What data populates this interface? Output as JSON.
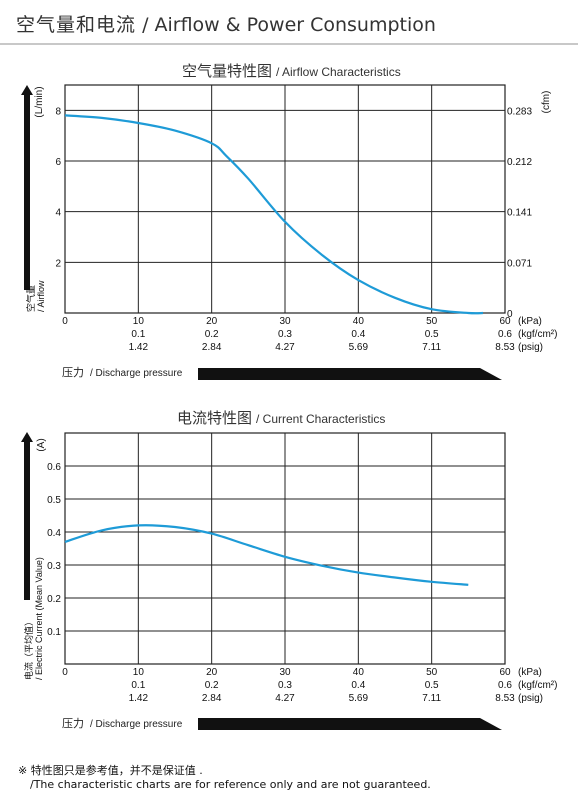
{
  "page": {
    "title_cn": "空气量和电流",
    "title_en": "/ Airflow & Power Consumption"
  },
  "colors": {
    "curve": "#1e9bd7",
    "grid": "#222222",
    "arrow": "#111111"
  },
  "pressure_axis": {
    "kpa_ticks": [
      "0",
      "10",
      "20",
      "30",
      "40",
      "50",
      "60"
    ],
    "kgf_ticks": [
      "0.1",
      "0.2",
      "0.3",
      "0.4",
      "0.5",
      "0.6"
    ],
    "psig_ticks": [
      "1.42",
      "2.84",
      "4.27",
      "5.69",
      "7.11",
      "8.53"
    ],
    "unit_kpa": "(kPa)",
    "unit_kgf": "(kgf/cm²)",
    "unit_psig": "(psig)",
    "label_cn": "压力",
    "label_en": "/ Discharge pressure"
  },
  "chart_data": [
    {
      "type": "line",
      "title_cn": "空气量特性图",
      "title_en": "/ Airflow Characteristics",
      "xlabel": "(kPa)",
      "ylabel_cn": "空气量",
      "ylabel_en": "/ Airflow",
      "y_unit_left": "(L/min)",
      "y_unit_right": "(cfm)",
      "xlim": [
        0,
        60
      ],
      "ylim": [
        0,
        9
      ],
      "x_ticks": [
        0,
        10,
        20,
        30,
        40,
        50,
        60
      ],
      "y_ticks": [
        "2",
        "4",
        "6",
        "8"
      ],
      "y_ticks_right": [
        "0",
        "0.071",
        "0.141",
        "0.212",
        "0.283"
      ],
      "grid": true,
      "series": [
        {
          "x": [
            0,
            5,
            10,
            15,
            20,
            22,
            25,
            30,
            35,
            40,
            45,
            50,
            55,
            57
          ],
          "y": [
            7.8,
            7.7,
            7.5,
            7.2,
            6.7,
            6.2,
            5.3,
            3.6,
            2.3,
            1.3,
            0.6,
            0.15,
            0.0,
            0.0
          ]
        }
      ]
    },
    {
      "type": "line",
      "title_cn": "电流特性图",
      "title_en": "/ Current Characteristics",
      "xlabel": "(kPa)",
      "ylabel_cn": "电流（平均值）",
      "ylabel_en": "/ Electric Current (Mean Value)",
      "y_unit_left": "(A)",
      "xlim": [
        0,
        60
      ],
      "ylim": [
        0,
        0.7
      ],
      "x_ticks": [
        0,
        10,
        20,
        30,
        40,
        50,
        60
      ],
      "y_ticks": [
        "0.1",
        "0.2",
        "0.3",
        "0.4",
        "0.5",
        "0.6"
      ],
      "grid": true,
      "series": [
        {
          "x": [
            0,
            5,
            10,
            15,
            20,
            25,
            30,
            35,
            40,
            45,
            50,
            55
          ],
          "y": [
            0.37,
            0.405,
            0.42,
            0.415,
            0.395,
            0.36,
            0.325,
            0.298,
            0.277,
            0.262,
            0.249,
            0.24
          ]
        }
      ]
    }
  ],
  "notes": {
    "line1": "※ 特性图只是参考值，并不是保证值 .",
    "line2": "/The characteristic charts are for reference only and are not guaranteed."
  }
}
